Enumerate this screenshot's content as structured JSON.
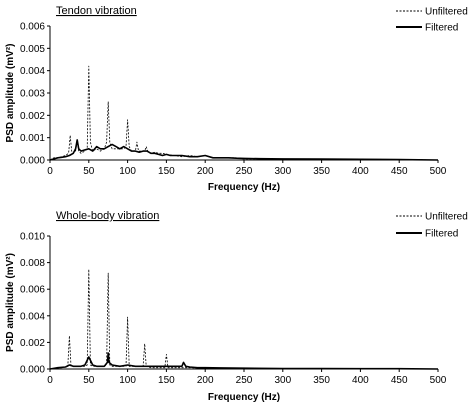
{
  "chart_data": [
    {
      "type": "line",
      "title": "Tendon vibration",
      "xlabel": "Frequency (Hz)",
      "ylabel": "PSD amplitude (mV²)",
      "xlim": [
        0,
        500
      ],
      "ylim": [
        0,
        0.006
      ],
      "xticks": [
        "0",
        "50",
        "100",
        "150",
        "200",
        "250",
        "300",
        "350",
        "400",
        "450",
        "500"
      ],
      "yticks": [
        "0.000",
        "0.001",
        "0.002",
        "0.003",
        "0.004",
        "0.005",
        "0.006"
      ],
      "legend": "top-right",
      "grid": false,
      "series": [
        {
          "name": "Unfiltered",
          "style": "dashed",
          "color": "#000000",
          "x": [
            0,
            5,
            10,
            15,
            20,
            24,
            26,
            28,
            30,
            33,
            35,
            37,
            40,
            45,
            48,
            50,
            52,
            55,
            60,
            65,
            70,
            73,
            75,
            77,
            80,
            85,
            90,
            95,
            98,
            100,
            102,
            105,
            110,
            112,
            114,
            118,
            122,
            124,
            126,
            130,
            135,
            140,
            145,
            150,
            160,
            170,
            180,
            190,
            200,
            210,
            220,
            230,
            240,
            250,
            260,
            280,
            300,
            320,
            340,
            360,
            380,
            400,
            420,
            440,
            460,
            480,
            500
          ],
          "y": [
            0,
            0.0001,
            0.0001,
            0.00015,
            0.0002,
            0.0003,
            0.0011,
            0.0004,
            0.0003,
            0.0004,
            0.0009,
            0.0004,
            0.0003,
            0.0004,
            0.0005,
            0.0042,
            0.0008,
            0.0004,
            0.0005,
            0.0004,
            0.0005,
            0.0008,
            0.0026,
            0.0008,
            0.0005,
            0.0005,
            0.0005,
            0.0005,
            0.0006,
            0.0018,
            0.0006,
            0.0004,
            0.0004,
            0.0008,
            0.0004,
            0.0004,
            0.0004,
            0.0006,
            0.0004,
            0.0003,
            0.00035,
            0.0003,
            0.0003,
            0.00025,
            0.0002,
            0.00015,
            0.0002,
            0.00015,
            0.0002,
            0.0001,
            0.0001,
            0.0001,
            0.0001,
            5e-05,
            5e-05,
            5e-05,
            5e-05,
            4e-05,
            3e-05,
            3e-05,
            3e-05,
            2e-05,
            2e-05,
            2e-05,
            2e-05,
            1e-05,
            0
          ]
        },
        {
          "name": "Filtered",
          "style": "solid",
          "color": "#000000",
          "x": [
            0,
            5,
            10,
            15,
            20,
            25,
            30,
            33,
            35,
            37,
            40,
            45,
            50,
            55,
            60,
            65,
            70,
            75,
            80,
            85,
            90,
            95,
            100,
            105,
            110,
            115,
            120,
            125,
            130,
            135,
            140,
            145,
            150,
            155,
            160,
            170,
            180,
            190,
            200,
            210,
            220,
            230,
            240,
            250,
            270,
            300,
            350,
            400,
            450,
            500
          ],
          "y": [
            0,
            5e-05,
            0.0001,
            0.00012,
            0.00015,
            0.0002,
            0.0003,
            0.0005,
            0.0009,
            0.0005,
            0.0004,
            0.00045,
            0.0005,
            0.0004,
            0.0006,
            0.0005,
            0.0005,
            0.0006,
            0.0007,
            0.0006,
            0.0005,
            0.0006,
            0.0005,
            0.0004,
            0.0004,
            0.00035,
            0.0004,
            0.0004,
            0.0003,
            0.0003,
            0.00025,
            0.0002,
            0.00025,
            0.0002,
            0.0002,
            0.0002,
            0.00015,
            0.00015,
            0.0002,
            0.0001,
            0.0001,
            0.0001,
            8e-05,
            7e-05,
            6e-05,
            5e-05,
            4e-05,
            3e-05,
            2e-05,
            0
          ]
        }
      ]
    },
    {
      "type": "line",
      "title": "Whole-body vibration",
      "xlabel": "Frequency (Hz)",
      "ylabel": "PSD amplitude (mV²)",
      "xlim": [
        0,
        500
      ],
      "ylim": [
        0,
        0.01
      ],
      "xticks": [
        "0",
        "50",
        "100",
        "150",
        "200",
        "250",
        "300",
        "350",
        "400",
        "450",
        "500"
      ],
      "yticks": [
        "0.000",
        "0.002",
        "0.004",
        "0.006",
        "0.008",
        "0.010"
      ],
      "legend": "top-right",
      "grid": false,
      "series": [
        {
          "name": "Unfiltered",
          "style": "dashed",
          "color": "#000000",
          "x": [
            0,
            5,
            10,
            15,
            20,
            23,
            25,
            27,
            30,
            35,
            40,
            45,
            48,
            50,
            52,
            55,
            60,
            65,
            70,
            73,
            75,
            77,
            80,
            85,
            90,
            95,
            98,
            100,
            102,
            105,
            110,
            115,
            120,
            122,
            124,
            130,
            140,
            145,
            148,
            150,
            152,
            160,
            170,
            180,
            190,
            200,
            220,
            250,
            300,
            350,
            400,
            450,
            500
          ],
          "y": [
            0,
            5e-05,
            0.0001,
            0.0001,
            0.00015,
            0.0002,
            0.0025,
            0.0002,
            0.0002,
            0.0002,
            0.0002,
            0.0002,
            0.0003,
            0.0075,
            0.0003,
            0.0002,
            0.0002,
            0.0002,
            0.0002,
            0.0003,
            0.0072,
            0.0003,
            0.0002,
            0.0002,
            0.0002,
            0.0002,
            0.0002,
            0.0039,
            0.0002,
            0.0002,
            0.0002,
            0.0002,
            0.0002,
            0.0019,
            0.0002,
            0.0001,
            0.0001,
            0.0001,
            0.0001,
            0.0011,
            0.0001,
            0.0001,
            0.0001,
            0.0001,
            8e-05,
            6e-05,
            5e-05,
            4e-05,
            3e-05,
            2e-05,
            2e-05,
            1e-05,
            0
          ]
        },
        {
          "name": "Filtered",
          "style": "solid",
          "color": "#000000",
          "x": [
            0,
            10,
            20,
            25,
            30,
            40,
            45,
            50,
            55,
            60,
            65,
            70,
            74,
            75,
            76,
            80,
            90,
            100,
            110,
            120,
            130,
            140,
            150,
            160,
            170,
            172,
            175,
            180,
            190,
            200,
            220,
            250,
            300,
            350,
            400,
            450,
            500
          ],
          "y": [
            0,
            0.0001,
            0.00015,
            0.0003,
            0.0002,
            0.0002,
            0.0003,
            0.0009,
            0.0003,
            0.0002,
            0.0002,
            0.0002,
            0.0005,
            0.0012,
            0.0005,
            0.0003,
            0.0002,
            0.0003,
            0.0002,
            0.0002,
            0.0002,
            0.0002,
            0.0002,
            0.0002,
            0.0002,
            0.0005,
            0.0002,
            0.00015,
            0.0001,
            0.0001,
            8e-05,
            6e-05,
            4e-05,
            3e-05,
            2e-05,
            2e-05,
            0
          ]
        }
      ]
    }
  ]
}
